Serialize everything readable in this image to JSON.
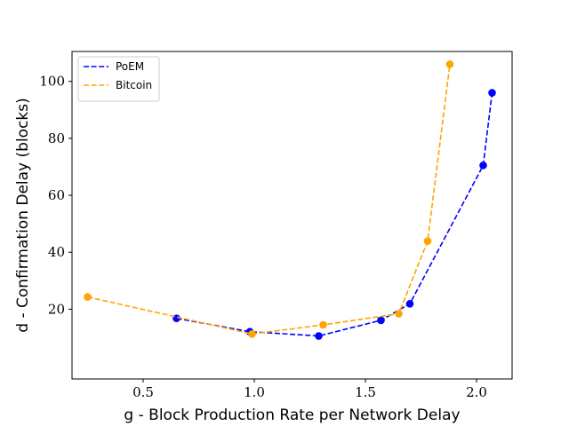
{
  "chart_data": {
    "type": "line",
    "xlabel": "g - Block Production Rate per Network Delay",
    "ylabel": "d - Confirmation Delay (blocks)",
    "xlim": [
      0.18,
      2.16
    ],
    "ylim": [
      -4.5,
      110.5
    ],
    "xticks": [
      {
        "value": 0.5,
        "label": "0.5"
      },
      {
        "value": 1.0,
        "label": "1.0"
      },
      {
        "value": 1.5,
        "label": "1.5"
      },
      {
        "value": 2.0,
        "label": "2.0"
      }
    ],
    "yticks": [
      {
        "value": 20,
        "label": "20"
      },
      {
        "value": 40,
        "label": "40"
      },
      {
        "value": 60,
        "label": "60"
      },
      {
        "value": 80,
        "label": "80"
      },
      {
        "value": 100,
        "label": "100"
      }
    ],
    "grid": false,
    "legend_position": "top-left",
    "series": [
      {
        "name": "PoEM",
        "color": "#0000ff",
        "line_style": "dashed",
        "marker": "circle",
        "x": [
          0.65,
          0.98,
          1.29,
          1.57,
          1.7,
          2.03,
          2.07
        ],
        "y": [
          16.8,
          12.1,
          10.6,
          16.1,
          21.9,
          70.5,
          96.0
        ]
      },
      {
        "name": "Bitcoin",
        "color": "#ffa500",
        "line_style": "dashed",
        "marker": "circle",
        "x": [
          0.25,
          0.99,
          1.31,
          1.65,
          1.78,
          1.88
        ],
        "y": [
          24.3,
          11.3,
          14.5,
          18.4,
          43.9,
          106.0
        ]
      }
    ]
  }
}
